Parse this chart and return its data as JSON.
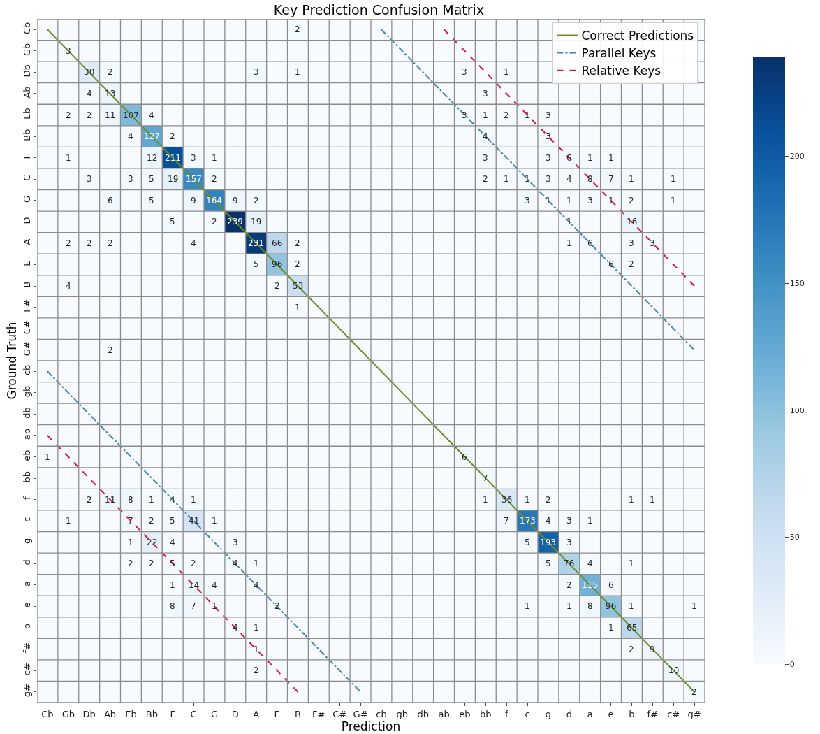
{
  "chart_data": {
    "type": "heatmap",
    "title": "Key Prediction Confusion Matrix",
    "xlabel": "Prediction",
    "ylabel": "Ground Truth",
    "categories": [
      "Cb",
      "Gb",
      "Db",
      "Ab",
      "Eb",
      "Bb",
      "F",
      "C",
      "G",
      "D",
      "A",
      "E",
      "B",
      "F#",
      "C#",
      "G#",
      "cb",
      "gb",
      "db",
      "ab",
      "eb",
      "bb",
      "f",
      "c",
      "g",
      "d",
      "a",
      "e",
      "b",
      "f#",
      "c#",
      "g#"
    ],
    "y_categories": [
      "Cb",
      "Gb",
      "Db",
      "Ab",
      "Eb",
      "Bb",
      "F",
      "C",
      "G",
      "D",
      "A",
      "E",
      "B",
      "F#",
      "C#",
      "G#",
      "cb",
      "gb",
      "db",
      "ab",
      "eb",
      "bb",
      "f",
      "c",
      "g",
      "d",
      "a",
      "e",
      "b",
      "f#",
      "c#",
      "g#"
    ],
    "cells": [
      [
        null,
        null,
        null,
        null,
        null,
        null,
        null,
        null,
        null,
        null,
        null,
        null,
        2,
        null,
        null,
        null,
        null,
        null,
        null,
        null,
        null,
        null,
        null,
        null,
        null,
        null,
        null,
        null,
        null,
        null,
        null,
        null
      ],
      [
        null,
        3,
        null,
        null,
        null,
        null,
        null,
        null,
        null,
        null,
        null,
        null,
        null,
        null,
        null,
        null,
        null,
        null,
        null,
        null,
        null,
        null,
        null,
        null,
        null,
        null,
        null,
        null,
        null,
        null,
        null,
        null
      ],
      [
        null,
        null,
        30,
        2,
        null,
        null,
        null,
        null,
        null,
        null,
        3,
        null,
        1,
        null,
        null,
        null,
        null,
        null,
        null,
        null,
        3,
        null,
        1,
        null,
        null,
        null,
        null,
        null,
        null,
        null,
        null,
        null
      ],
      [
        null,
        null,
        4,
        13,
        null,
        null,
        null,
        null,
        null,
        null,
        null,
        null,
        null,
        null,
        null,
        null,
        null,
        null,
        null,
        null,
        null,
        3,
        null,
        null,
        null,
        null,
        null,
        null,
        null,
        null,
        null,
        null
      ],
      [
        null,
        2,
        2,
        11,
        107,
        4,
        null,
        null,
        null,
        null,
        null,
        null,
        null,
        null,
        null,
        null,
        null,
        null,
        null,
        null,
        3,
        1,
        2,
        1,
        3,
        null,
        null,
        null,
        null,
        null,
        null,
        null
      ],
      [
        null,
        null,
        null,
        null,
        4,
        127,
        2,
        null,
        null,
        null,
        null,
        null,
        null,
        null,
        null,
        null,
        null,
        null,
        null,
        null,
        null,
        4,
        null,
        null,
        3,
        null,
        null,
        null,
        null,
        null,
        null,
        null
      ],
      [
        null,
        1,
        null,
        null,
        null,
        12,
        211,
        3,
        1,
        null,
        null,
        null,
        null,
        null,
        null,
        null,
        null,
        null,
        null,
        null,
        null,
        3,
        null,
        null,
        3,
        6,
        1,
        1,
        null,
        null,
        null,
        null
      ],
      [
        null,
        null,
        3,
        null,
        3,
        5,
        19,
        157,
        2,
        null,
        null,
        null,
        null,
        null,
        null,
        null,
        null,
        null,
        null,
        null,
        null,
        2,
        1,
        1,
        3,
        4,
        8,
        7,
        1,
        null,
        1,
        null
      ],
      [
        null,
        null,
        null,
        6,
        null,
        5,
        null,
        9,
        164,
        9,
        2,
        null,
        null,
        null,
        null,
        null,
        null,
        null,
        null,
        null,
        null,
        null,
        null,
        3,
        1,
        1,
        3,
        1,
        2,
        null,
        1,
        null
      ],
      [
        null,
        null,
        null,
        null,
        null,
        null,
        5,
        null,
        2,
        239,
        19,
        null,
        null,
        null,
        null,
        null,
        null,
        null,
        null,
        null,
        null,
        null,
        null,
        null,
        null,
        1,
        null,
        null,
        16,
        null,
        null,
        null
      ],
      [
        null,
        2,
        2,
        2,
        null,
        null,
        null,
        4,
        null,
        null,
        231,
        66,
        2,
        null,
        null,
        null,
        null,
        null,
        null,
        null,
        null,
        null,
        null,
        null,
        null,
        1,
        6,
        null,
        3,
        3,
        null,
        null
      ],
      [
        null,
        null,
        null,
        null,
        null,
        null,
        null,
        null,
        null,
        null,
        5,
        96,
        2,
        null,
        null,
        null,
        null,
        null,
        null,
        null,
        null,
        null,
        null,
        null,
        null,
        null,
        null,
        6,
        2,
        null,
        null,
        null
      ],
      [
        null,
        4,
        null,
        null,
        null,
        null,
        null,
        null,
        null,
        null,
        null,
        2,
        53,
        null,
        null,
        null,
        null,
        null,
        null,
        null,
        null,
        null,
        null,
        null,
        null,
        null,
        null,
        null,
        null,
        null,
        null,
        null
      ],
      [
        null,
        null,
        null,
        null,
        null,
        null,
        null,
        null,
        null,
        null,
        null,
        null,
        1,
        null,
        null,
        null,
        null,
        null,
        null,
        null,
        null,
        null,
        null,
        null,
        null,
        null,
        null,
        null,
        null,
        null,
        null,
        null
      ],
      [
        null,
        null,
        null,
        null,
        null,
        null,
        null,
        null,
        null,
        null,
        null,
        null,
        null,
        null,
        null,
        null,
        null,
        null,
        null,
        null,
        null,
        null,
        null,
        null,
        null,
        null,
        null,
        null,
        null,
        null,
        null,
        null
      ],
      [
        null,
        null,
        null,
        2,
        null,
        null,
        null,
        null,
        null,
        null,
        null,
        null,
        null,
        null,
        null,
        null,
        null,
        null,
        null,
        null,
        null,
        null,
        null,
        null,
        null,
        null,
        null,
        null,
        null,
        null,
        null,
        null
      ],
      [
        null,
        null,
        null,
        null,
        null,
        null,
        null,
        null,
        null,
        null,
        null,
        null,
        null,
        null,
        null,
        null,
        null,
        null,
        null,
        null,
        null,
        null,
        null,
        null,
        null,
        null,
        null,
        null,
        null,
        null,
        null,
        null
      ],
      [
        null,
        null,
        null,
        null,
        null,
        null,
        null,
        null,
        null,
        null,
        null,
        null,
        null,
        null,
        null,
        null,
        null,
        null,
        null,
        null,
        null,
        null,
        null,
        null,
        null,
        null,
        null,
        null,
        null,
        null,
        null,
        null
      ],
      [
        null,
        null,
        null,
        null,
        null,
        null,
        null,
        null,
        null,
        null,
        null,
        null,
        null,
        null,
        null,
        null,
        null,
        null,
        null,
        null,
        null,
        null,
        null,
        null,
        null,
        null,
        null,
        null,
        null,
        null,
        null,
        null
      ],
      [
        null,
        null,
        null,
        null,
        null,
        null,
        null,
        null,
        null,
        null,
        null,
        null,
        null,
        null,
        null,
        null,
        null,
        null,
        null,
        null,
        null,
        null,
        null,
        null,
        null,
        null,
        null,
        null,
        null,
        null,
        null,
        null
      ],
      [
        1,
        null,
        null,
        null,
        null,
        null,
        null,
        null,
        null,
        null,
        null,
        null,
        null,
        null,
        null,
        null,
        null,
        null,
        null,
        null,
        6,
        null,
        null,
        null,
        null,
        null,
        null,
        null,
        null,
        null,
        null,
        null
      ],
      [
        null,
        null,
        null,
        null,
        null,
        null,
        null,
        null,
        null,
        null,
        null,
        null,
        null,
        null,
        null,
        null,
        null,
        null,
        null,
        null,
        null,
        7,
        null,
        null,
        null,
        null,
        null,
        null,
        null,
        null,
        null,
        null
      ],
      [
        null,
        null,
        2,
        11,
        8,
        1,
        4,
        1,
        null,
        null,
        null,
        null,
        null,
        null,
        null,
        null,
        null,
        null,
        null,
        null,
        null,
        1,
        36,
        1,
        2,
        null,
        null,
        null,
        1,
        1,
        null,
        null
      ],
      [
        null,
        1,
        null,
        null,
        7,
        2,
        5,
        41,
        1,
        null,
        null,
        null,
        null,
        null,
        null,
        null,
        null,
        null,
        null,
        null,
        null,
        null,
        7,
        173,
        4,
        3,
        1,
        null,
        null,
        null,
        null,
        null
      ],
      [
        null,
        null,
        null,
        null,
        1,
        22,
        4,
        null,
        null,
        3,
        null,
        null,
        null,
        null,
        null,
        null,
        null,
        null,
        null,
        null,
        null,
        null,
        null,
        5,
        193,
        3,
        null,
        null,
        null,
        null,
        null,
        null
      ],
      [
        null,
        null,
        null,
        null,
        2,
        2,
        5,
        2,
        null,
        4,
        1,
        null,
        null,
        null,
        null,
        null,
        null,
        null,
        null,
        null,
        null,
        null,
        null,
        null,
        5,
        76,
        4,
        null,
        1,
        null,
        null,
        null
      ],
      [
        null,
        null,
        null,
        null,
        null,
        null,
        1,
        14,
        4,
        null,
        4,
        null,
        null,
        null,
        null,
        null,
        null,
        null,
        null,
        null,
        null,
        null,
        null,
        null,
        null,
        2,
        115,
        6,
        null,
        null,
        null,
        null
      ],
      [
        null,
        null,
        null,
        null,
        null,
        null,
        8,
        7,
        1,
        null,
        null,
        2,
        null,
        null,
        null,
        null,
        null,
        null,
        null,
        null,
        null,
        null,
        null,
        1,
        null,
        1,
        8,
        96,
        1,
        null,
        null,
        1
      ],
      [
        null,
        null,
        null,
        null,
        null,
        null,
        null,
        null,
        null,
        4,
        1,
        null,
        null,
        null,
        null,
        null,
        null,
        null,
        null,
        null,
        null,
        null,
        null,
        null,
        null,
        null,
        null,
        1,
        65,
        null,
        null,
        null
      ],
      [
        null,
        null,
        null,
        null,
        null,
        null,
        null,
        null,
        null,
        null,
        1,
        null,
        null,
        null,
        null,
        null,
        null,
        null,
        null,
        null,
        null,
        null,
        null,
        null,
        null,
        null,
        null,
        null,
        2,
        9,
        null,
        null
      ],
      [
        null,
        null,
        null,
        null,
        null,
        null,
        null,
        null,
        null,
        null,
        2,
        null,
        null,
        null,
        null,
        null,
        null,
        null,
        null,
        null,
        null,
        null,
        null,
        null,
        null,
        null,
        null,
        null,
        null,
        null,
        10,
        null
      ],
      [
        null,
        null,
        null,
        null,
        null,
        null,
        null,
        null,
        null,
        null,
        null,
        null,
        null,
        null,
        null,
        null,
        null,
        null,
        null,
        null,
        null,
        null,
        null,
        null,
        null,
        null,
        null,
        null,
        null,
        null,
        null,
        2
      ]
    ],
    "clim": [
      0,
      239
    ],
    "cticks": [
      0,
      50,
      100,
      150,
      200
    ],
    "data_labels": true,
    "grid": true,
    "legend": "top right",
    "series": [
      {
        "name": "Correct Predictions",
        "type": "line",
        "color": "#6b8e23",
        "line_style": "solid",
        "values": [
          0,
          1,
          2,
          3,
          4,
          5,
          6,
          7,
          8,
          9,
          10,
          11,
          12,
          13,
          14,
          15,
          16,
          17,
          18,
          19,
          20,
          21,
          22,
          23,
          24,
          25,
          26,
          27,
          28,
          29,
          30,
          31
        ],
        "value_labels": [
          null,
          null,
          null,
          null,
          null,
          null,
          null,
          null,
          null,
          null,
          null,
          null,
          null,
          null,
          null,
          null,
          null,
          null,
          null,
          null,
          null,
          null,
          null,
          null,
          null,
          null,
          null,
          null,
          null,
          null,
          null,
          null
        ]
      },
      {
        "name": "Parallel Keys",
        "type": "line",
        "color": "#4682b4",
        "line_style": "dashdot",
        "values": [
          null,
          null,
          null,
          null,
          null,
          null,
          null,
          null,
          null,
          null,
          null,
          null,
          null,
          null,
          null,
          null,
          0,
          1,
          2,
          3,
          4,
          5,
          6,
          7,
          8,
          9,
          10,
          11,
          12,
          13,
          14,
          15
        ],
        "value_labels": [
          null,
          null,
          null,
          null,
          null,
          null,
          null,
          null,
          null,
          null,
          null,
          null,
          null,
          null,
          null,
          null,
          null,
          null,
          null,
          null,
          null,
          null,
          null,
          null,
          null,
          null,
          null,
          null,
          null,
          null,
          null,
          null
        ]
      },
      {
        "type": "line",
        "color": "#4682b4",
        "line_style": "dashdot",
        "values": [
          16,
          17,
          18,
          19,
          20,
          21,
          22,
          23,
          24,
          25,
          26,
          27,
          28,
          29,
          30,
          31,
          null,
          null,
          null,
          null,
          null,
          null,
          null,
          null,
          null,
          null,
          null,
          null,
          null,
          null,
          null,
          null
        ],
        "value_labels": [
          null,
          null,
          null,
          null,
          null,
          null,
          null,
          null,
          null,
          null,
          null,
          null,
          null,
          null,
          null,
          null,
          null,
          null,
          null,
          null,
          null,
          null,
          null,
          null,
          null,
          null,
          null,
          null,
          null,
          null,
          null,
          null
        ]
      },
      {
        "name": "Relative Keys",
        "type": "line",
        "color": "#dc143c",
        "line_style": "dashed",
        "values": [
          null,
          null,
          null,
          null,
          null,
          null,
          null,
          null,
          null,
          null,
          null,
          null,
          null,
          null,
          null,
          null,
          null,
          null,
          null,
          0,
          1,
          2,
          3,
          4,
          5,
          6,
          7,
          8,
          9,
          10,
          11,
          12
        ],
        "value_labels": [
          null,
          null,
          null,
          null,
          null,
          null,
          null,
          null,
          null,
          null,
          null,
          null,
          null,
          null,
          null,
          null,
          null,
          null,
          null,
          null,
          null,
          null,
          null,
          null,
          null,
          null,
          null,
          null,
          null,
          null,
          null,
          null
        ]
      },
      {
        "type": "line",
        "color": "#dc143c",
        "line_style": "dashed",
        "values": [
          19,
          20,
          21,
          22,
          23,
          24,
          25,
          26,
          27,
          28,
          29,
          30,
          31,
          null,
          null,
          null,
          null,
          null,
          null,
          null,
          null,
          null,
          null,
          null,
          null,
          null,
          null,
          null,
          null,
          null,
          null,
          null
        ],
        "value_labels": [
          null,
          null,
          null,
          null,
          null,
          null,
          null,
          null,
          null,
          null,
          null,
          null,
          null,
          null,
          null,
          null,
          null,
          null,
          null,
          null,
          null,
          null,
          null,
          null,
          null,
          null,
          null,
          null,
          null,
          null,
          null,
          null
        ]
      }
    ]
  }
}
